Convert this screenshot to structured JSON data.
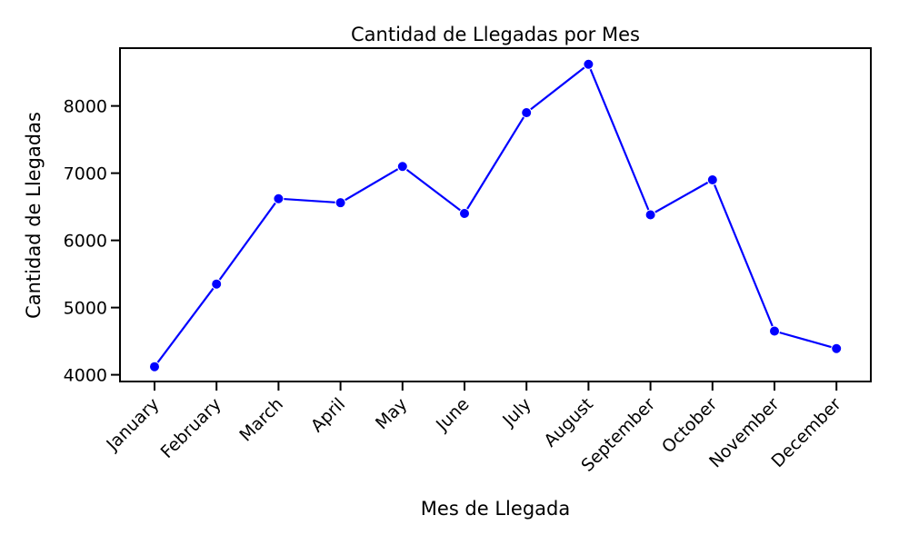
{
  "chart_data": {
    "type": "line",
    "title": "Cantidad de Llegadas por Mes",
    "xlabel": "Mes de Llegada",
    "ylabel": "Cantidad de Llegadas",
    "categories": [
      "January",
      "February",
      "March",
      "April",
      "May",
      "June",
      "July",
      "August",
      "September",
      "October",
      "November",
      "December"
    ],
    "series": [
      {
        "values": [
          4120,
          5350,
          6620,
          6560,
          7100,
          6400,
          7900,
          8620,
          6380,
          6900,
          4650,
          4390
        ]
      }
    ],
    "yticks": [
      4000,
      5000,
      6000,
      7000,
      8000
    ],
    "ylim": [
      3900,
      8860
    ],
    "grid": false,
    "legend": "none",
    "colors": {
      "line": "#0000ff",
      "marker": "#0000ff",
      "axis": "#000000",
      "background": "#ffffff"
    }
  }
}
